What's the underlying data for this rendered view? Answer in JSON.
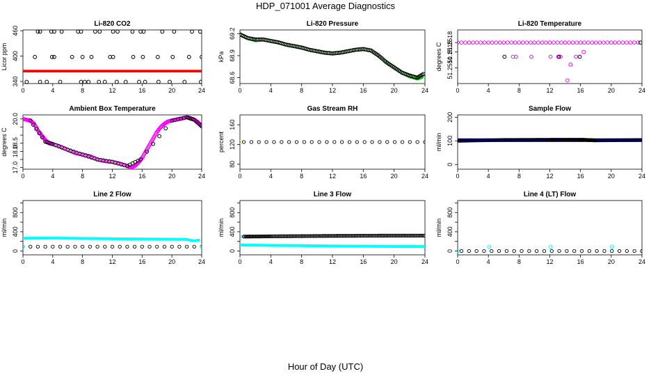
{
  "figure": {
    "title": "HDP_071001  Average Diagnostics",
    "xlabel": "Hour of Day (UTC)"
  },
  "chart_data": [
    {
      "type": "scatter",
      "title": "Li-820 CO2",
      "ylabel": "Licor ppm",
      "xlim": [
        0,
        24
      ],
      "ylim": [
        335,
        462
      ],
      "xticks": [
        0,
        4,
        8,
        12,
        16,
        20,
        24
      ],
      "yticks": [
        340,
        400,
        460
      ],
      "series": [
        {
          "color": "#000000",
          "style": "points",
          "x": [
            2,
            2.3,
            3.8,
            4.2,
            5.2,
            7.4,
            7.8,
            9.7,
            10.3,
            12.1,
            12.7,
            14.7,
            15.8,
            16.2,
            18.7,
            20.3,
            22.7,
            23.8
          ],
          "y": [
            458,
            458,
            458,
            458,
            458,
            458,
            458,
            458,
            458,
            458,
            458,
            458,
            458,
            458,
            458,
            458,
            458,
            458
          ]
        },
        {
          "color": "#000000",
          "style": "points",
          "x": [
            1.6,
            3.9,
            4.2,
            6.6,
            8,
            9.2,
            11.7,
            12.1,
            14.8,
            16.1,
            18.1,
            20.1,
            22.3,
            24
          ],
          "y": [
            398,
            398,
            398,
            398,
            398,
            398,
            398,
            398,
            398,
            398,
            398,
            398,
            398,
            398
          ]
        },
        {
          "color": "#000000",
          "style": "points",
          "x": [
            0.5,
            2.3,
            3.2,
            5,
            7.8,
            8.3,
            8.8,
            10.2,
            11,
            12.6,
            13.8,
            15.6,
            16.4,
            18.2,
            19.7,
            21.7,
            23.9
          ],
          "y": [
            339,
            339,
            339,
            339,
            339,
            339,
            339,
            339,
            339,
            339,
            339,
            339,
            339,
            339,
            339,
            339,
            339
          ]
        },
        {
          "color": "#ff0000",
          "style": "band",
          "x": [
            0,
            24
          ],
          "y": [
            364.5,
            364.5
          ],
          "halfwidth": 2.2
        }
      ]
    },
    {
      "type": "scatter",
      "title": "Li-820 Pressure",
      "ylabel": "kPa",
      "xlim": [
        0,
        24
      ],
      "ylim": [
        68.52,
        69.25
      ],
      "xticks": [
        0,
        4,
        8,
        12,
        16,
        20,
        24
      ],
      "yticks": [
        68.6,
        68.9,
        69.2
      ],
      "series": [
        {
          "color": "#00cc00",
          "style": "dense-points",
          "x": [
            0,
            1,
            2,
            3,
            4,
            5,
            6,
            7,
            8,
            9,
            10,
            11,
            12,
            13,
            14,
            15,
            16,
            17,
            18,
            19,
            20,
            21,
            22,
            23,
            23.6
          ],
          "y": [
            69.19,
            69.14,
            69.11,
            69.12,
            69.1,
            69.08,
            69.05,
            69.03,
            69.01,
            68.98,
            68.96,
            68.94,
            68.93,
            68.94,
            68.96,
            68.98,
            68.99,
            68.97,
            68.9,
            68.81,
            68.74,
            68.67,
            68.62,
            68.59,
            68.61
          ]
        },
        {
          "color": "#000000",
          "style": "dense-points",
          "x": [
            0,
            1,
            2,
            3,
            4,
            5,
            6,
            7,
            8,
            9,
            10,
            11,
            12,
            13,
            14,
            15,
            16,
            17,
            18,
            19,
            20,
            21,
            22,
            23,
            23.8
          ],
          "y": [
            69.19,
            69.14,
            69.12,
            69.12,
            69.1,
            69.08,
            69.05,
            69.03,
            69.01,
            68.98,
            68.96,
            68.94,
            68.93,
            68.94,
            68.96,
            68.98,
            68.99,
            68.97,
            68.9,
            68.81,
            68.74,
            68.67,
            68.63,
            68.6,
            68.65
          ]
        }
      ]
    },
    {
      "type": "scatter",
      "title": "Li-820 Temperature",
      "ylabel": "degrees C",
      "xlim": [
        0,
        24
      ],
      "ylim": [
        51.2505,
        51.2522
      ],
      "xticks": [
        0,
        4,
        8,
        12,
        16,
        20,
        24
      ],
      "yticks": [
        51.251,
        51.2515,
        51.2518
      ],
      "ytick_labels": [
        "51.2510",
        "51.2515",
        "51.2518"
      ],
      "series": [
        {
          "color": "#ff00ff",
          "style": "points",
          "x": [
            0,
            0.5,
            1,
            1.5,
            2,
            2.5,
            3,
            3.5,
            4,
            4.5,
            5,
            5.5,
            6,
            6.5,
            7,
            7.5,
            8,
            8.5,
            9,
            9.5,
            10,
            10.5,
            11,
            11.5,
            12,
            12.5,
            13,
            13.5,
            14,
            14.5,
            15,
            15.5,
            16,
            16.5,
            17,
            17.5,
            18,
            18.5,
            19,
            19.5,
            20,
            20.5,
            21,
            21.5,
            22,
            22.5,
            23,
            23.5
          ],
          "y": [
            51.2518,
            51.2518,
            51.2518,
            51.2518,
            51.2518,
            51.2518,
            51.2518,
            51.2518,
            51.2518,
            51.2518,
            51.2518,
            51.2518,
            51.2518,
            51.2518,
            51.2518,
            51.2518,
            51.2518,
            51.2518,
            51.2518,
            51.2518,
            51.2518,
            51.2518,
            51.2518,
            51.2518,
            51.2518,
            51.2518,
            51.2518,
            51.2518,
            51.2518,
            51.2518,
            51.2518,
            51.2518,
            51.2518,
            51.2518,
            51.2518,
            51.2518,
            51.2518,
            51.2518,
            51.2518,
            51.2518,
            51.2518,
            51.2518,
            51.2518,
            51.2518,
            51.2518,
            51.2518,
            51.2518,
            51.2518
          ]
        },
        {
          "color": "#ff00ff",
          "style": "points",
          "x": [
            7.2,
            7.6,
            9.6,
            12.1,
            13.1,
            13.4,
            14.3,
            14.7,
            15.4,
            16.4
          ],
          "y": [
            51.25135,
            51.25135,
            51.25135,
            51.25135,
            51.25135,
            51.25135,
            51.2506,
            51.2511,
            51.25135,
            51.2515
          ]
        },
        {
          "color": "#000000",
          "style": "points",
          "x": [
            6.1,
            13.2,
            15.9,
            23.8
          ],
          "y": [
            51.25135,
            51.25135,
            51.25135,
            51.2518
          ]
        }
      ]
    },
    {
      "type": "scatter",
      "title": "Ambient Box Temperature",
      "ylabel": "degrees C",
      "xlim": [
        0,
        24
      ],
      "ylim": [
        16.9,
        20.25
      ],
      "xticks": [
        0,
        4,
        8,
        12,
        16,
        20,
        24
      ],
      "yticks": [
        17.0,
        17.5,
        18.0,
        18.5,
        19.0,
        19.5,
        20.0
      ],
      "ytick_labels": [
        "17.0",
        "",
        "18.0",
        "18.5",
        "",
        "",
        "20.0"
      ],
      "series": [
        {
          "color": "#ff00ff",
          "style": "dense-points",
          "x": [
            0,
            0.5,
            1,
            1.5,
            2,
            2.5,
            3,
            3.5,
            4,
            5,
            6,
            7,
            8,
            9,
            10,
            11,
            12,
            13,
            14,
            14.5,
            15,
            15.5,
            16,
            16.5,
            17,
            17.5,
            18,
            18.5,
            19,
            19.5,
            20,
            20.5,
            21,
            21.5,
            22,
            22.5,
            23,
            23.5,
            24
          ],
          "y": [
            20.0,
            19.95,
            19.9,
            19.7,
            19.3,
            19.0,
            18.7,
            18.5,
            18.45,
            18.3,
            18.1,
            17.9,
            17.8,
            17.7,
            17.5,
            17.4,
            17.35,
            17.25,
            17.1,
            17.0,
            17.1,
            17.3,
            17.6,
            18.0,
            18.4,
            18.8,
            19.2,
            19.5,
            19.7,
            19.85,
            19.9,
            19.95,
            20.0,
            20.05,
            20.1,
            20.05,
            19.95,
            19.8,
            19.55
          ]
        },
        {
          "color": "#000000",
          "style": "dense-points",
          "x": [
            1,
            3,
            4,
            6,
            8,
            10,
            12,
            14,
            15.8,
            20,
            22,
            23,
            24
          ],
          "y": [
            19.9,
            18.6,
            18.45,
            18.1,
            17.8,
            17.5,
            17.35,
            17.1,
            17.5,
            19.9,
            20.1,
            19.95,
            19.55
          ]
        }
      ]
    },
    {
      "type": "scatter",
      "title": "Gas Stream RH",
      "ylabel": "percent",
      "xlim": [
        0,
        24
      ],
      "ylim": [
        70,
        180
      ],
      "xticks": [
        0,
        4,
        8,
        12,
        16,
        20,
        24
      ],
      "yticks": [
        80,
        120,
        160
      ],
      "series": [
        {
          "color": "#ffff00",
          "style": "points",
          "x": [
            0
          ],
          "y": [
            125
          ]
        },
        {
          "color": "#000000",
          "style": "line-points",
          "x": [
            0.5,
            24
          ],
          "y": [
            125,
            125
          ]
        }
      ]
    },
    {
      "type": "scatter",
      "title": "Sample Flow",
      "ylabel": "ml/min",
      "xlim": [
        0,
        24
      ],
      "ylim": [
        -20,
        210
      ],
      "xticks": [
        0,
        4,
        8,
        12,
        16,
        20,
        24
      ],
      "yticks": [
        0,
        100,
        200
      ],
      "series": [
        {
          "color": "#0000cc",
          "style": "band",
          "x": [
            0,
            24
          ],
          "y": [
            103,
            103
          ],
          "halfwidth": 6
        },
        {
          "color": "#000000",
          "style": "line-points",
          "x": [
            0,
            6,
            12,
            16,
            18,
            24
          ],
          "y": [
            100,
            104,
            105,
            105,
            102,
            104
          ]
        }
      ]
    },
    {
      "type": "scatter",
      "title": "Line 2 Flow",
      "ylabel": "ml/min",
      "xlim": [
        0,
        24
      ],
      "ylim": [
        -80,
        1050
      ],
      "xticks": [
        0,
        4,
        8,
        12,
        16,
        20,
        24
      ],
      "yticks": [
        0,
        200,
        400,
        600,
        800,
        1000
      ],
      "ytick_labels": [
        "0",
        "",
        "400",
        "",
        "800",
        ""
      ],
      "series": [
        {
          "color": "#00ffff",
          "style": "band",
          "x": [
            0,
            4,
            8,
            12,
            16,
            20,
            22,
            23,
            23.7
          ],
          "y": [
            265,
            270,
            262,
            255,
            250,
            245,
            240,
            210,
            230
          ],
          "halfwidth": 22
        },
        {
          "color": "#000000",
          "style": "line-points",
          "x": [
            0,
            24
          ],
          "y": [
            90,
            90
          ]
        },
        {
          "color": "#00ffff",
          "style": "points",
          "x": [
            0,
            24
          ],
          "y": [
            90,
            95
          ]
        }
      ]
    },
    {
      "type": "scatter",
      "title": "Line 3 Flow",
      "ylabel": "ml/min",
      "xlim": [
        0,
        24
      ],
      "ylim": [
        -80,
        1050
      ],
      "xticks": [
        0,
        4,
        8,
        12,
        16,
        20,
        24
      ],
      "yticks": [
        0,
        200,
        400,
        600,
        800,
        1000
      ],
      "ytick_labels": [
        "0",
        "",
        "400",
        "",
        "800",
        ""
      ],
      "series": [
        {
          "color": "#00ffff",
          "style": "band",
          "x": [
            0,
            4,
            8,
            12,
            16,
            20,
            24
          ],
          "y": [
            125,
            118,
            112,
            105,
            100,
            95,
            92
          ],
          "halfwidth": 22
        },
        {
          "color": "#000000",
          "style": "line-points",
          "x": [
            0.5,
            4,
            8,
            12,
            16,
            20,
            24
          ],
          "y": [
            300,
            305,
            310,
            315,
            318,
            320,
            320
          ]
        },
        {
          "color": "#00ffff",
          "style": "points",
          "x": [
            0
          ],
          "y": [
            300
          ]
        }
      ]
    },
    {
      "type": "scatter",
      "title": "Line 4 (LT) Flow",
      "ylabel": "ml/min",
      "xlim": [
        0,
        24
      ],
      "ylim": [
        -80,
        1050
      ],
      "xticks": [
        0,
        4,
        8,
        12,
        16,
        20,
        24
      ],
      "yticks": [
        0,
        200,
        400,
        600,
        800,
        1000
      ],
      "ytick_labels": [
        "0",
        "",
        "400",
        "",
        "800",
        ""
      ],
      "series": [
        {
          "color": "#000000",
          "style": "line-points",
          "x": [
            0.5,
            24
          ],
          "y": [
            0,
            0
          ]
        },
        {
          "color": "#00ffff",
          "style": "points",
          "x": [
            0,
            4.1,
            12.1,
            20.1
          ],
          "y": [
            0,
            90,
            90,
            90
          ]
        }
      ]
    }
  ]
}
